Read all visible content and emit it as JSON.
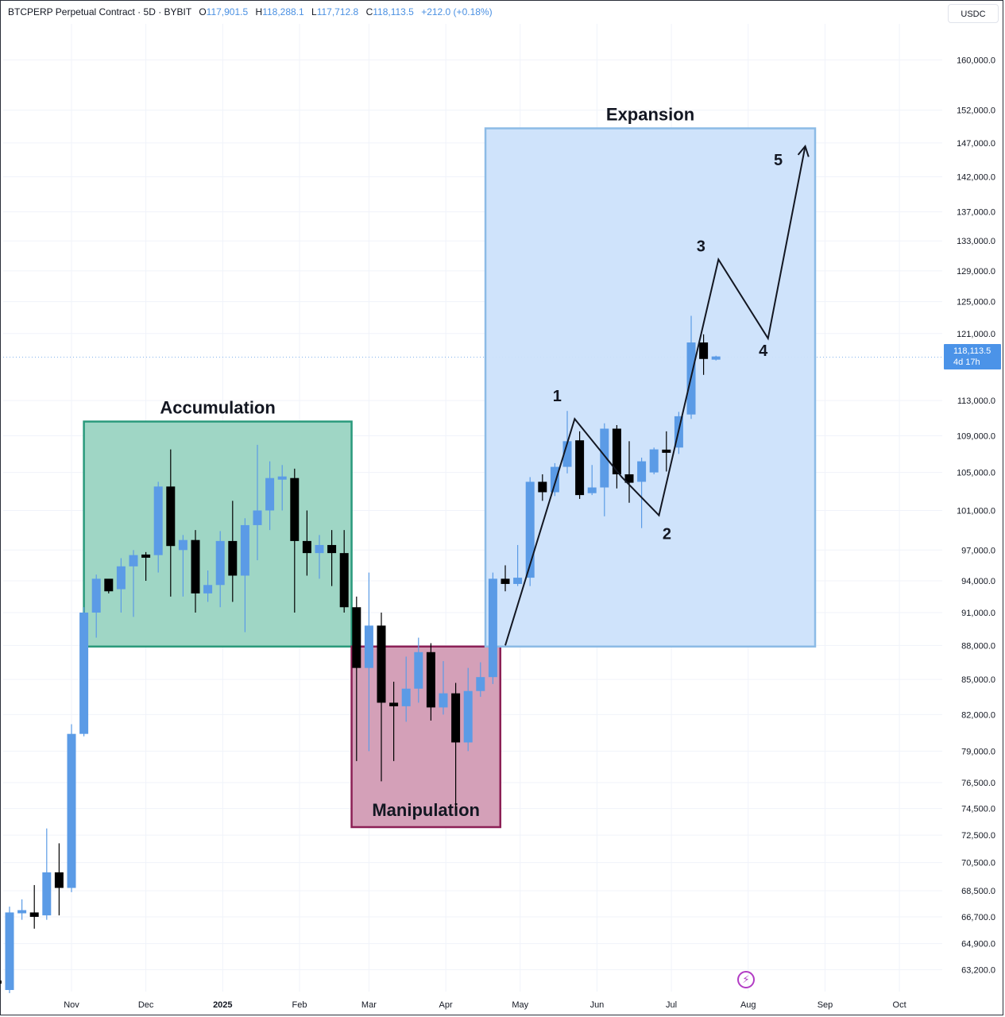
{
  "header": {
    "symbol": "BTCPERP Perpetual Contract · 5D · BYBIT",
    "open_label": "O",
    "open": "117,901.5",
    "high_label": "H",
    "high": "118,288.1",
    "low_label": "L",
    "low": "117,712.8",
    "close_label": "C",
    "close": "118,113.5",
    "change": "+212.0 (+0.18%)"
  },
  "currency": "USDC",
  "last_price_tag": {
    "price": "118,113.5",
    "countdown": "4d 17h"
  },
  "icons": {
    "bolt": "lightning-bolt-icon"
  },
  "colors": {
    "up": "#5b9be6",
    "down": "#000000",
    "accumulation_fill": "#9fd6c5",
    "accumulation_border": "#2a9a7c",
    "manipulation_fill": "#d4a0b8",
    "manipulation_border": "#8c1f55",
    "expansion_fill": "#cce2fb",
    "expansion_border": "#8cbbe6"
  },
  "chart_data": {
    "type": "candlestick",
    "y_scale": "log",
    "ylim": [
      61800,
      166000
    ],
    "y_ticks": [
      "160,000.0",
      "152,000.0",
      "147,000.0",
      "142,000.0",
      "137,000.0",
      "133,000.0",
      "129,000.0",
      "125,000.0",
      "121,000.0",
      "113,000.0",
      "109,000.0",
      "105,000.0",
      "101,000.0",
      "97,000.0",
      "94,000.0",
      "91,000.0",
      "88,000.0",
      "85,000.0",
      "82,000.0",
      "79,000.0",
      "76,500.0",
      "74,500.0",
      "72,500.0",
      "70,500.0",
      "68,500.0",
      "66,700.0",
      "64,900.0",
      "63,200.0"
    ],
    "x_ticks": [
      "Nov",
      "Dec",
      "2025",
      "Feb",
      "Mar",
      "Apr",
      "May",
      "Jun",
      "Jul",
      "Aug",
      "Sep",
      "Oct"
    ],
    "x_tick_dates": [
      "2024-11-01",
      "2024-12-01",
      "2025-01-01",
      "2025-02-01",
      "2025-03-01",
      "2025-04-01",
      "2025-05-01",
      "2025-06-01",
      "2025-07-01",
      "2025-08-01",
      "2025-09-01",
      "2025-10-01"
    ],
    "candles": [
      {
        "date": "2024-10-02",
        "o": 62500,
        "h": 64300,
        "l": 61700,
        "c": 62300
      },
      {
        "date": "2024-10-07",
        "o": 61900,
        "h": 67400,
        "l": 61700,
        "c": 67000
      },
      {
        "date": "2024-10-12",
        "o": 67000,
        "h": 67900,
        "l": 66500,
        "c": 67100
      },
      {
        "date": "2024-10-17",
        "o": 67000,
        "h": 68900,
        "l": 65900,
        "c": 66700
      },
      {
        "date": "2024-10-22",
        "o": 66800,
        "h": 73000,
        "l": 66500,
        "c": 69800
      },
      {
        "date": "2024-10-27",
        "o": 69800,
        "h": 71900,
        "l": 66800,
        "c": 68700
      },
      {
        "date": "2024-11-01",
        "o": 68700,
        "h": 81200,
        "l": 68400,
        "c": 80400
      },
      {
        "date": "2024-11-06",
        "o": 80400,
        "h": 91500,
        "l": 80200,
        "c": 91000
      },
      {
        "date": "2024-11-11",
        "o": 91000,
        "h": 94600,
        "l": 88700,
        "c": 94200
      },
      {
        "date": "2024-11-16",
        "o": 94200,
        "h": 94000,
        "l": 92800,
        "c": 93000
      },
      {
        "date": "2024-11-21",
        "o": 93200,
        "h": 96200,
        "l": 91000,
        "c": 95400
      },
      {
        "date": "2024-11-26",
        "o": 95400,
        "h": 97000,
        "l": 90600,
        "c": 96500
      },
      {
        "date": "2024-12-01",
        "o": 96500,
        "h": 96800,
        "l": 94000,
        "c": 96300
      },
      {
        "date": "2024-12-06",
        "o": 96500,
        "h": 104000,
        "l": 94800,
        "c": 103500
      },
      {
        "date": "2024-12-11",
        "o": 103500,
        "h": 107500,
        "l": 92500,
        "c": 97400
      },
      {
        "date": "2024-12-16",
        "o": 97000,
        "h": 98500,
        "l": 92500,
        "c": 98000
      },
      {
        "date": "2024-12-21",
        "o": 98000,
        "h": 99000,
        "l": 91000,
        "c": 92800
      },
      {
        "date": "2024-12-26",
        "o": 92800,
        "h": 95000,
        "l": 92000,
        "c": 93600
      },
      {
        "date": "2024-12-31",
        "o": 93600,
        "h": 98900,
        "l": 91500,
        "c": 97900
      },
      {
        "date": "2025-01-05",
        "o": 97900,
        "h": 102000,
        "l": 92000,
        "c": 94500
      },
      {
        "date": "2025-01-10",
        "o": 94500,
        "h": 100200,
        "l": 89200,
        "c": 99500
      },
      {
        "date": "2025-01-15",
        "o": 99500,
        "h": 108000,
        "l": 96000,
        "c": 101000
      },
      {
        "date": "2025-01-20",
        "o": 101000,
        "h": 106200,
        "l": 99000,
        "c": 104400
      },
      {
        "date": "2025-01-25",
        "o": 104400,
        "h": 105800,
        "l": 101000,
        "c": 104400
      },
      {
        "date": "2025-01-30",
        "o": 104400,
        "h": 105400,
        "l": 91000,
        "c": 97900
      },
      {
        "date": "2025-02-04",
        "o": 97900,
        "h": 101000,
        "l": 94500,
        "c": 96700
      },
      {
        "date": "2025-02-09",
        "o": 96700,
        "h": 98500,
        "l": 94200,
        "c": 97500
      },
      {
        "date": "2025-02-14",
        "o": 97500,
        "h": 99000,
        "l": 93500,
        "c": 96700
      },
      {
        "date": "2025-02-19",
        "o": 96700,
        "h": 99000,
        "l": 91000,
        "c": 91500
      },
      {
        "date": "2025-02-24",
        "o": 91500,
        "h": 92500,
        "l": 78200,
        "c": 86000
      },
      {
        "date": "2025-03-01",
        "o": 86000,
        "h": 94800,
        "l": 79000,
        "c": 89800
      },
      {
        "date": "2025-03-06",
        "o": 89800,
        "h": 91000,
        "l": 76600,
        "c": 83000
      },
      {
        "date": "2025-03-11",
        "o": 83000,
        "h": 84800,
        "l": 78200,
        "c": 82700
      },
      {
        "date": "2025-03-16",
        "o": 82700,
        "h": 87000,
        "l": 81400,
        "c": 84200
      },
      {
        "date": "2025-03-21",
        "o": 84200,
        "h": 88700,
        "l": 83000,
        "c": 87400
      },
      {
        "date": "2025-03-26",
        "o": 87400,
        "h": 88200,
        "l": 81500,
        "c": 82600
      },
      {
        "date": "2025-03-31",
        "o": 82600,
        "h": 86600,
        "l": 82000,
        "c": 83800
      },
      {
        "date": "2025-04-05",
        "o": 83800,
        "h": 84700,
        "l": 74400,
        "c": 79700
      },
      {
        "date": "2025-04-10",
        "o": 79700,
        "h": 86000,
        "l": 79000,
        "c": 84000
      },
      {
        "date": "2025-04-15",
        "o": 84000,
        "h": 86500,
        "l": 83500,
        "c": 85200
      },
      {
        "date": "2025-04-20",
        "o": 85200,
        "h": 94800,
        "l": 84600,
        "c": 94200
      },
      {
        "date": "2025-04-25",
        "o": 94200,
        "h": 95500,
        "l": 93000,
        "c": 93700
      },
      {
        "date": "2025-04-30",
        "o": 93700,
        "h": 97500,
        "l": 93500,
        "c": 94300
      },
      {
        "date": "2025-05-05",
        "o": 94300,
        "h": 104500,
        "l": 93500,
        "c": 104000
      },
      {
        "date": "2025-05-10",
        "o": 104000,
        "h": 104800,
        "l": 102000,
        "c": 102900
      },
      {
        "date": "2025-05-15",
        "o": 102900,
        "h": 106000,
        "l": 102500,
        "c": 105600
      },
      {
        "date": "2025-05-20",
        "o": 105600,
        "h": 111800,
        "l": 104900,
        "c": 108400
      },
      {
        "date": "2025-05-25",
        "o": 108500,
        "h": 109500,
        "l": 102200,
        "c": 102600
      },
      {
        "date": "2025-05-30",
        "o": 102800,
        "h": 105800,
        "l": 102600,
        "c": 103400
      },
      {
        "date": "2025-06-04",
        "o": 103400,
        "h": 110400,
        "l": 100400,
        "c": 109800
      },
      {
        "date": "2025-06-09",
        "o": 109800,
        "h": 110200,
        "l": 103300,
        "c": 104800
      },
      {
        "date": "2025-06-14",
        "o": 104800,
        "h": 108400,
        "l": 101800,
        "c": 103900
      },
      {
        "date": "2025-06-19",
        "o": 104000,
        "h": 106600,
        "l": 99200,
        "c": 106200
      },
      {
        "date": "2025-06-24",
        "o": 105000,
        "h": 107700,
        "l": 104800,
        "c": 107500
      },
      {
        "date": "2025-06-29",
        "o": 107400,
        "h": 109500,
        "l": 105100,
        "c": 107200
      },
      {
        "date": "2025-07-04",
        "o": 107700,
        "h": 111700,
        "l": 107000,
        "c": 111200
      },
      {
        "date": "2025-07-09",
        "o": 111400,
        "h": 123200,
        "l": 110900,
        "c": 119900
      },
      {
        "date": "2025-07-14",
        "o": 119900,
        "h": 120900,
        "l": 116000,
        "c": 117900
      },
      {
        "date": "2025-07-19",
        "o": 117901.5,
        "h": 118288.1,
        "l": 117712.8,
        "c": 118113.5
      }
    ],
    "annotations": {
      "zones": [
        {
          "label": "Accumulation",
          "start": "2024-11-06",
          "end": "2025-02-22",
          "price_low": 87900,
          "price_high": 110600
        },
        {
          "label": "Manipulation",
          "start": "2025-02-22",
          "end": "2025-04-23",
          "price_low": 73100,
          "price_high": 87900
        },
        {
          "label": "Expansion",
          "start": "2025-04-17",
          "end": "2025-08-28",
          "price_low": 87900,
          "price_high": 149200
        }
      ],
      "wave_path": [
        {
          "label": "",
          "date": "2025-04-25",
          "price": 88000
        },
        {
          "label": "1",
          "date": "2025-05-23",
          "price": 110900
        },
        {
          "label": "",
          "date": "2025-06-11",
          "price": 104500
        },
        {
          "label": "2",
          "date": "2025-06-26",
          "price": 100500
        },
        {
          "label": "3",
          "date": "2025-07-20",
          "price": 130500
        },
        {
          "label": "4",
          "date": "2025-08-09",
          "price": 120400
        },
        {
          "label": "5",
          "date": "2025-08-24",
          "price": 146500
        }
      ]
    }
  }
}
